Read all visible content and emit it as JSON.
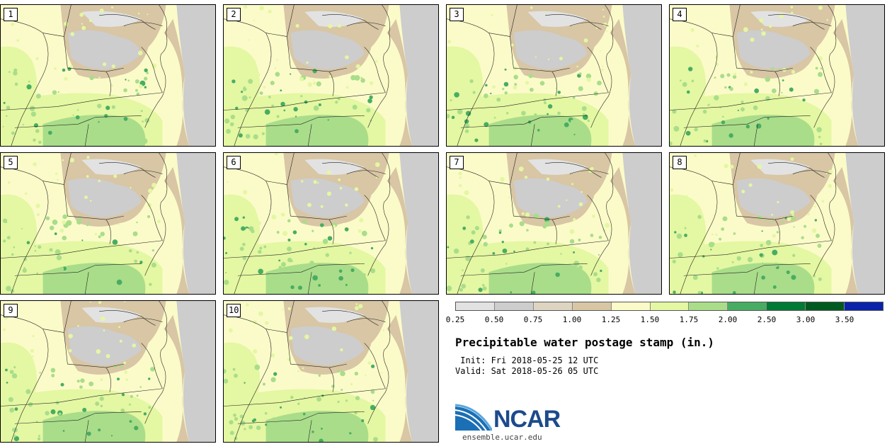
{
  "panels": [
    {
      "label": "1"
    },
    {
      "label": "2"
    },
    {
      "label": "3"
    },
    {
      "label": "4"
    },
    {
      "label": "5"
    },
    {
      "label": "6"
    },
    {
      "label": "7"
    },
    {
      "label": "8"
    },
    {
      "label": "9"
    },
    {
      "label": "10"
    }
  ],
  "colorbar": {
    "colors": [
      "#e2e2e2",
      "#cdcdcd",
      "#ddd5c2",
      "#d8c6a4",
      "#fbfbc9",
      "#e4f7a2",
      "#a9dd8a",
      "#48ad62",
      "#007a34",
      "#005a20",
      "#0a22aa"
    ],
    "labels": [
      "0.25",
      "0.50",
      "0.75",
      "1.00",
      "1.25",
      "1.50",
      "1.75",
      "2.00",
      "2.50",
      "3.00",
      "3.50"
    ]
  },
  "title": "Precipitable water postage stamp (in.)",
  "init_line": " Init: Fri 2018-05-25 12 UTC",
  "valid_line": "Valid: Sat 2018-05-26 05 UTC",
  "logo": {
    "name": "NCAR",
    "url": "ensemble.ucar.edu"
  }
}
